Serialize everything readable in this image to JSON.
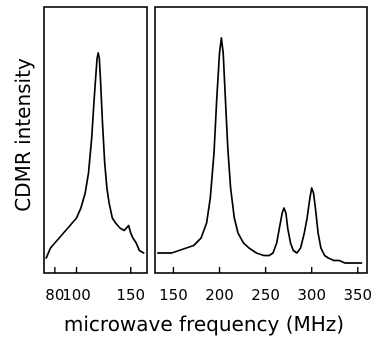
{
  "chart_data": {
    "type": "line",
    "xlabel": "microwave frequency (MHz)",
    "ylabel": "CDMR intensity",
    "grid": false,
    "panels": [
      {
        "xlim": [
          70,
          165
        ],
        "ylim": [
          0,
          100
        ],
        "ticks": [
          {
            "value": 80,
            "label": "80"
          },
          {
            "value": 100,
            "label": "100"
          },
          {
            "value": 150,
            "label": "150"
          }
        ],
        "series": [
          {
            "x": [
              72,
              76,
              80,
              84,
              88,
              92,
              96,
              100,
              104,
              108,
              111,
              114,
              116,
              118,
              119,
              120,
              121,
              122,
              124,
              126,
              128,
              130,
              133,
              136,
              140,
              144,
              148,
              150,
              152,
              155,
              158,
              162
            ],
            "y": [
              4,
              8,
              10,
              12,
              14,
              16,
              18,
              20,
              24,
              30,
              38,
              52,
              66,
              78,
              84,
              86,
              84,
              76,
              58,
              42,
              32,
              26,
              20,
              18,
              16,
              15,
              17,
              14,
              12,
              10,
              7,
              6
            ]
          }
        ]
      },
      {
        "xlim": [
          130,
          360
        ],
        "ylim": [
          0,
          100
        ],
        "ticks": [
          {
            "value": 150,
            "label": "150"
          },
          {
            "value": 200,
            "label": "200"
          },
          {
            "value": 250,
            "label": "250"
          },
          {
            "value": 300,
            "label": "300"
          },
          {
            "value": 350,
            "label": "350"
          }
        ],
        "series": [
          {
            "x": [
              133,
              140,
              148,
              156,
              164,
              172,
              180,
              186,
              190,
              194,
              197,
              200,
              202,
              204,
              206,
              209,
              212,
              216,
              220,
              226,
              232,
              240,
              248,
              254,
              258,
              262,
              265,
              268,
              270,
              272,
              274,
              277,
              280,
              284,
              288,
              292,
              295,
              298,
              300,
              302,
              304,
              307,
              310,
              314,
              318,
              324,
              330,
              336,
              342,
              348,
              354
            ],
            "y": [
              6,
              6,
              6,
              7,
              8,
              9,
              12,
              18,
              28,
              46,
              68,
              86,
              92,
              86,
              70,
              48,
              32,
              20,
              14,
              10,
              8,
              6,
              5,
              5,
              6,
              10,
              16,
              22,
              24,
              22,
              16,
              10,
              7,
              6,
              8,
              14,
              20,
              28,
              32,
              30,
              24,
              14,
              8,
              5,
              4,
              3,
              3,
              2,
              2,
              2,
              2
            ]
          }
        ]
      }
    ]
  }
}
